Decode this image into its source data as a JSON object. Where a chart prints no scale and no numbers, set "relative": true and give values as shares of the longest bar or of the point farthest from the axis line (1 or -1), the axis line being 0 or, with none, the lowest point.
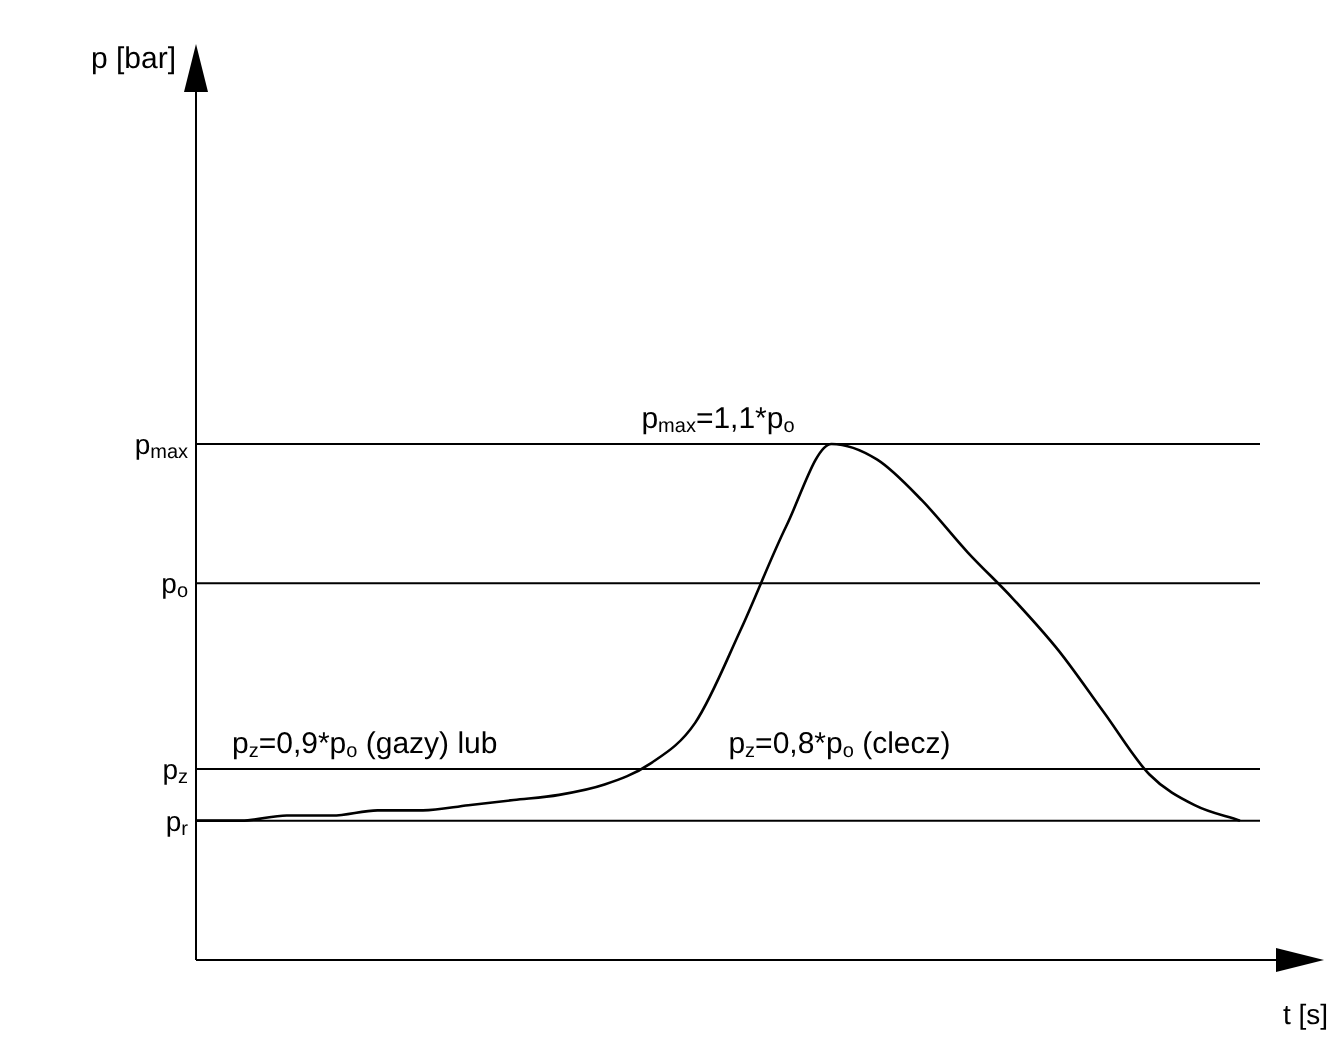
{
  "chart_data": {
    "type": "line",
    "relative": true,
    "xlabel": "t [s]",
    "categories": [
      null,
      null,
      null,
      null,
      null,
      null,
      null,
      null,
      null,
      null,
      null,
      null,
      null,
      null,
      null,
      null,
      null,
      null,
      null,
      null,
      null,
      null,
      null,
      null
    ],
    "series": [
      {
        "color": "#000000",
        "values": [
          0.27,
          0.27,
          0.28,
          0.28,
          0.29,
          0.29,
          0.3,
          0.31,
          0.32,
          0.34,
          0.38,
          0.46,
          0.64,
          0.84,
          1.0,
          0.97,
          0.89,
          0.79,
          0.7,
          0.6,
          0.48,
          0.36,
          0.3,
          0.27
        ]
      }
    ],
    "ref_lines": [
      {
        "axis": "y",
        "value": 1.0,
        "label": "p$_{max}$",
        "color": "#000000"
      },
      {
        "axis": "y",
        "value": 0.73,
        "label": "p$_{o}$",
        "color": "#000000"
      },
      {
        "axis": "y",
        "value": 0.37,
        "label": "p$_{z}$",
        "color": "#000000"
      },
      {
        "axis": "y",
        "value": 0.27,
        "label": "p$_{r}$",
        "color": "#000000"
      }
    ],
    "annotations": [
      "p$_{max}$=1,1*p$_{o}$",
      "p$_{z}$=0,9*p$_{o}$ (gazy) lub",
      "p$_{z}$=0,8*p$_{o}$ (clecz)",
      "p [bar]"
    ],
    "legend": false,
    "marker": "none",
    "line_style": "solid"
  }
}
